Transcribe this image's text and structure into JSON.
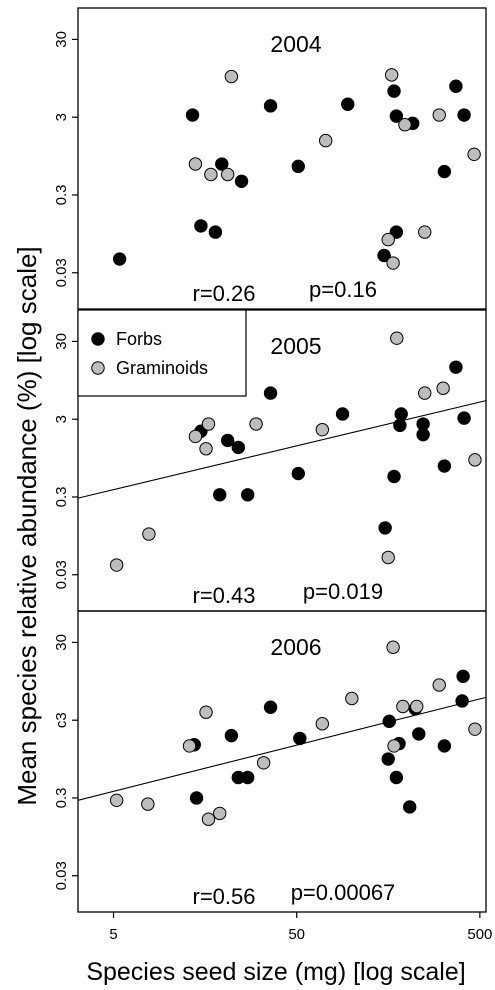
{
  "figure": {
    "ylabel": "Mean species relative abundance (%) [log scale]",
    "xlabel": "Species seed size (mg) [log scale]"
  },
  "legend": {
    "placement": "top-left of middle panel",
    "entries": [
      {
        "label": "Forbs",
        "color": "#000000"
      },
      {
        "label": "Graminoids",
        "color": "#bdbdbd"
      }
    ]
  },
  "chart_data": [
    {
      "type": "scatter",
      "title": "2004",
      "x_scale": "log",
      "y_scale": "log",
      "xlim": [
        3.2,
        540
      ],
      "ylim": [
        0.013,
        60
      ],
      "xticks": [
        "5",
        "50",
        "500"
      ],
      "yticks": [
        "30",
        "3",
        "0.3",
        "0.03"
      ],
      "grid": false,
      "stats": {
        "r": "r=0.26",
        "p": "p=0.16"
      },
      "fit_line": null,
      "series": [
        {
          "name": "Forbs",
          "color": "#000000",
          "points": [
            [
              5.4,
              0.045
            ],
            [
              13.5,
              3.2
            ],
            [
              15,
              0.12
            ],
            [
              18,
              0.1
            ],
            [
              19.5,
              0.75
            ],
            [
              25,
              0.45
            ],
            [
              36,
              4.2
            ],
            [
              51,
              0.7
            ],
            [
              95,
              4.4
            ],
            [
              150,
              0.05
            ],
            [
              170,
              6.5
            ],
            [
              175,
              3.1
            ],
            [
              175,
              0.1
            ],
            [
              215,
              2.5
            ],
            [
              320,
              0.6
            ],
            [
              370,
              7.5
            ],
            [
              410,
              3.2
            ]
          ]
        },
        {
          "name": "Graminoids",
          "color": "#bdbdbd",
          "points": [
            [
              14,
              0.75
            ],
            [
              17,
              0.55
            ],
            [
              21,
              0.55
            ],
            [
              22,
              10
            ],
            [
              72,
              1.5
            ],
            [
              158,
              0.08
            ],
            [
              165,
              10.5
            ],
            [
              168,
              0.04
            ],
            [
              195,
              2.4
            ],
            [
              250,
              0.1
            ],
            [
              300,
              3.2
            ],
            [
              465,
              1.0
            ]
          ]
        }
      ]
    },
    {
      "type": "scatter",
      "title": "2005",
      "x_scale": "log",
      "y_scale": "log",
      "xlim": [
        3.2,
        540
      ],
      "ylim": [
        0.013,
        60
      ],
      "xticks": [
        "5",
        "50",
        "500"
      ],
      "yticks": [
        "30",
        "3",
        "0.3",
        "0.03"
      ],
      "grid": false,
      "stats": {
        "r": "r=0.43",
        "p": "p=0.019"
      },
      "fit_line": {
        "x": [
          3.2,
          540
        ],
        "y": [
          0.29,
          5.2
        ]
      },
      "series": [
        {
          "name": "Forbs",
          "color": "#000000",
          "points": [
            [
              15,
              2.1
            ],
            [
              19,
              0.32
            ],
            [
              21,
              1.6
            ],
            [
              24,
              1.3
            ],
            [
              27,
              0.32
            ],
            [
              36,
              6.5
            ],
            [
              51,
              0.6
            ],
            [
              89,
              3.5
            ],
            [
              152,
              0.12
            ],
            [
              170,
              0.55
            ],
            [
              183,
              2.5
            ],
            [
              186,
              3.5
            ],
            [
              245,
              2.6
            ],
            [
              245,
              1.9
            ],
            [
              320,
              0.75
            ],
            [
              370,
              14
            ],
            [
              410,
              3.1
            ]
          ]
        },
        {
          "name": "Graminoids",
          "color": "#bdbdbd",
          "points": [
            [
              5.2,
              0.04
            ],
            [
              7.8,
              0.1
            ],
            [
              14,
              1.8
            ],
            [
              16,
              1.25
            ],
            [
              16.5,
              2.6
            ],
            [
              30,
              2.6
            ],
            [
              69,
              2.2
            ],
            [
              158,
              0.05
            ],
            [
              176,
              33
            ],
            [
              250,
              6.5
            ],
            [
              315,
              7.5
            ],
            [
              470,
              0.9
            ]
          ]
        }
      ]
    },
    {
      "type": "scatter",
      "title": "2006",
      "x_scale": "log",
      "y_scale": "log",
      "xlim": [
        3.2,
        540
      ],
      "ylim": [
        0.013,
        60
      ],
      "xticks": [
        "5",
        "50",
        "500"
      ],
      "yticks": [
        "30",
        "c3",
        "0.3",
        "0.03"
      ],
      "grid": false,
      "stats": {
        "r": "r=0.56",
        "p": "p=0.00067"
      },
      "fit_line": {
        "x": [
          3.2,
          540
        ],
        "y": [
          0.28,
          5.9
        ]
      },
      "series": [
        {
          "name": "Forbs",
          "color": "#000000",
          "points": [
            [
              13.8,
              1.45
            ],
            [
              14.2,
              0.3
            ],
            [
              22,
              1.9
            ],
            [
              24,
              0.55
            ],
            [
              27,
              0.55
            ],
            [
              36,
              4.4
            ],
            [
              52,
              1.75
            ],
            [
              158,
              0.95
            ],
            [
              160,
              2.9
            ],
            [
              175,
              0.55
            ],
            [
              181,
              1.5
            ],
            [
              207,
              0.23
            ],
            [
              222,
              4.2
            ],
            [
              232,
              2.0
            ],
            [
              320,
              1.4
            ],
            [
              400,
              5.3
            ],
            [
              405,
              11
            ]
          ]
        },
        {
          "name": "Graminoids",
          "color": "#bdbdbd",
          "points": [
            [
              5.2,
              0.28
            ],
            [
              7.7,
              0.25
            ],
            [
              13,
              1.4
            ],
            [
              16,
              3.8
            ],
            [
              16.5,
              0.16
            ],
            [
              19,
              0.19
            ],
            [
              33,
              0.85
            ],
            [
              69,
              2.7
            ],
            [
              100,
              5.7
            ],
            [
              168,
              26
            ],
            [
              170,
              1.4
            ],
            [
              190,
              4.5
            ],
            [
              226,
              4.5
            ],
            [
              300,
              8.5
            ],
            [
              470,
              2.3
            ]
          ]
        }
      ]
    }
  ]
}
